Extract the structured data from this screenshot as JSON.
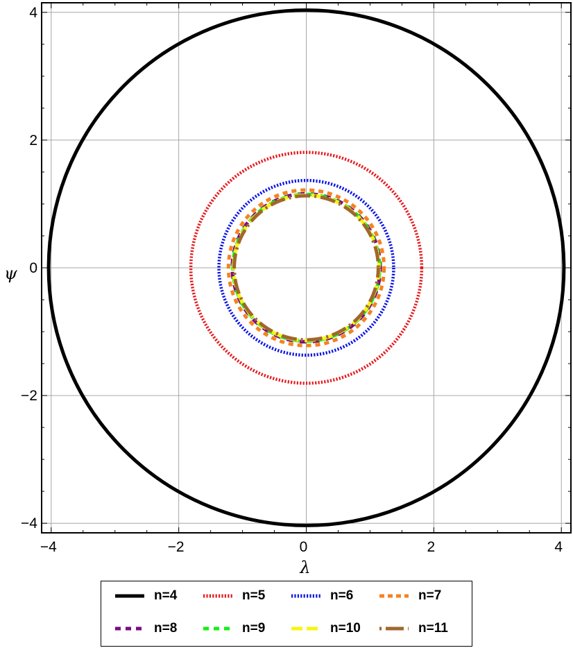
{
  "chart_data": {
    "type": "line",
    "title": "",
    "xlabel": "λ",
    "ylabel": "ψ",
    "xlim": [
      -4.15,
      4.15
    ],
    "ylim": [
      -4.15,
      4.15
    ],
    "x_ticks": [
      -4,
      -2,
      0,
      2,
      4
    ],
    "y_ticks": [
      -4,
      -2,
      0,
      2,
      4
    ],
    "x_tick_labels": [
      "−4",
      "−2",
      "0",
      "2",
      "4"
    ],
    "y_tick_labels": [
      "−4",
      "−2",
      "0",
      "2",
      "4"
    ],
    "grid": true,
    "legend_position": "bottom",
    "curve_shape": "circle centered at origin",
    "series": [
      {
        "name": "n=4",
        "radius": 4.04,
        "color": "#000000",
        "style": "solid"
      },
      {
        "name": "n=5",
        "radius": 1.81,
        "color": "#e8191c",
        "style": "dotted"
      },
      {
        "name": "n=6",
        "radius": 1.37,
        "color": "#0a14e6",
        "style": "dotted"
      },
      {
        "name": "n=7",
        "radius": 1.22,
        "color": "#f5821f",
        "style": "dashed-short"
      },
      {
        "name": "n=8",
        "radius": 1.16,
        "color": "#7b0a82",
        "style": "dashed"
      },
      {
        "name": "n=9",
        "radius": 1.15,
        "color": "#14f014",
        "style": "dashed"
      },
      {
        "name": "n=10",
        "radius": 1.14,
        "color": "#f5f514",
        "style": "dashed-long"
      },
      {
        "name": "n=11",
        "radius": 1.13,
        "color": "#a0672d",
        "style": "dash-dot"
      }
    ]
  }
}
